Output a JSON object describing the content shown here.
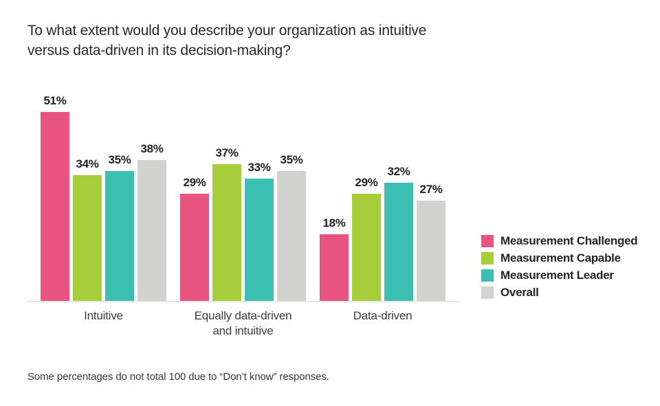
{
  "header": {
    "title_lines": [
      "To what extent would you describe your organization as intuitive",
      "versus data-driven in its decision-making?"
    ]
  },
  "colors": {
    "measurement_challenged": "#E8537F",
    "measurement_capable": "#A7CE39",
    "measurement_leader": "#3BBFB3",
    "overall": "#D2D2D1",
    "axis_line": "#E7E7E6",
    "label_text": "#231F20"
  },
  "legend": {
    "items": [
      {
        "label": "Measurement Challenged",
        "color": "#E8537F"
      },
      {
        "label": "Measurement Capable",
        "color": "#A7CE39"
      },
      {
        "label": "Measurement Leader",
        "color": "#3BBFB3"
      },
      {
        "label": "Overall",
        "color": "#D2D2D1"
      }
    ]
  },
  "chart_data": {
    "type": "bar",
    "title": "To what extent would you describe your organization as intuitive versus data-driven in its decision-making?",
    "categories": [
      "Intuitive",
      "Equally data-driven and intuitive",
      "Data-driven"
    ],
    "series": [
      {
        "name": "Measurement Challenged",
        "color": "#E8537F",
        "values": [
          51,
          29,
          18
        ]
      },
      {
        "name": "Measurement Capable",
        "color": "#A7CE39",
        "values": [
          34,
          37,
          29
        ]
      },
      {
        "name": "Measurement Leader",
        "color": "#3BBFB3",
        "values": [
          35,
          33,
          32
        ]
      },
      {
        "name": "Overall",
        "color": "#D2D2D1",
        "values": [
          38,
          35,
          27
        ]
      }
    ],
    "value_suffix": "%",
    "data_labels": true,
    "ylim": [
      0,
      55
    ],
    "grid": false,
    "y_axis_visible": false,
    "legend_position": "right",
    "footnote": "Some percentages do not total 100 due to “Don’t know” responses."
  }
}
